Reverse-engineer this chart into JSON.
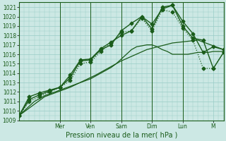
{
  "bg_color": "#cce8e4",
  "grid_color": "#99ccc6",
  "line_color": "#1a5c1a",
  "xlabel": "Pression niveau de la mer( hPa )",
  "ylim": [
    1009,
    1021.5
  ],
  "yticks": [
    1009,
    1010,
    1011,
    1012,
    1013,
    1014,
    1015,
    1016,
    1017,
    1018,
    1019,
    1020,
    1021
  ],
  "day_lines": [
    16,
    28,
    40,
    52,
    64
  ],
  "xtick_positions": [
    16,
    28,
    40,
    52,
    64,
    76
  ],
  "xtick_labels": [
    "Mer",
    "Ven",
    "Sam",
    "Dim",
    "Lun",
    "M"
  ],
  "xlim": [
    0,
    80
  ],
  "series": [
    {
      "x": [
        0,
        2,
        4,
        6,
        8,
        10,
        12,
        14,
        16,
        18,
        20,
        22,
        24,
        26,
        28,
        30,
        32,
        34,
        36,
        38,
        40,
        42,
        44,
        46,
        48,
        50,
        52,
        54,
        56,
        58,
        60,
        62,
        64,
        66,
        68,
        70,
        72,
        74,
        76,
        78,
        80
      ],
      "y": [
        1009.5,
        1010.0,
        1010.5,
        1011.0,
        1011.3,
        1011.6,
        1011.8,
        1012.0,
        1012.2,
        1012.4,
        1012.6,
        1012.8,
        1013.0,
        1013.2,
        1013.4,
        1013.7,
        1014.0,
        1014.3,
        1014.6,
        1015.0,
        1015.5,
        1016.0,
        1016.5,
        1016.8,
        1016.9,
        1017.0,
        1017.0,
        1016.8,
        1016.5,
        1016.3,
        1016.0,
        1016.0,
        1016.0,
        1016.0,
        1016.1,
        1016.2,
        1016.2,
        1016.2,
        1016.3,
        1016.3,
        1016.3
      ],
      "style": "-",
      "marker": null,
      "markersize": 0,
      "lw": 0.9,
      "alpha": 1.0
    },
    {
      "x": [
        0,
        10,
        20,
        30,
        40,
        50,
        60,
        70,
        80
      ],
      "y": [
        1009.5,
        1011.5,
        1012.5,
        1013.8,
        1015.3,
        1016.5,
        1017.2,
        1017.5,
        1016.5
      ],
      "style": "-",
      "marker": null,
      "markersize": 0,
      "lw": 0.9,
      "alpha": 1.0
    },
    {
      "x": [
        0,
        4,
        8,
        12,
        16,
        20,
        24,
        28,
        32,
        36,
        40,
        44,
        48,
        52,
        56,
        60,
        64,
        68,
        72,
        76,
        80
      ],
      "y": [
        1009.5,
        1011.2,
        1011.7,
        1012.1,
        1012.5,
        1013.5,
        1015.3,
        1015.4,
        1016.5,
        1017.0,
        1018.5,
        1019.3,
        1020.0,
        1019.2,
        1020.8,
        1021.2,
        1019.0,
        1017.7,
        1017.5,
        1014.5,
        1016.2
      ],
      "style": "-",
      "marker": "D",
      "markersize": 2.5,
      "lw": 1.0,
      "alpha": 1.0
    },
    {
      "x": [
        0,
        4,
        8,
        12,
        16,
        20,
        24,
        28,
        32,
        36,
        40,
        44,
        48,
        52,
        56,
        60,
        64,
        68,
        72,
        76,
        80
      ],
      "y": [
        1009.5,
        1011.5,
        1011.9,
        1012.2,
        1012.5,
        1013.8,
        1015.4,
        1015.5,
        1016.6,
        1017.3,
        1018.0,
        1018.5,
        1020.0,
        1018.7,
        1021.0,
        1021.2,
        1019.5,
        1018.2,
        1016.2,
        1016.8,
        1016.5
      ],
      "style": "-",
      "marker": "D",
      "markersize": 2.5,
      "lw": 1.0,
      "alpha": 1.0
    },
    {
      "x": [
        0,
        4,
        8,
        12,
        16,
        20,
        24,
        28,
        32,
        36,
        40,
        44,
        48,
        52,
        56,
        60,
        64,
        68,
        72,
        76,
        80
      ],
      "y": [
        1009.5,
        1011.0,
        1011.5,
        1012.0,
        1012.5,
        1013.2,
        1015.0,
        1015.2,
        1016.3,
        1017.2,
        1018.3,
        1018.5,
        1019.8,
        1018.5,
        1020.7,
        1020.5,
        1018.8,
        1017.5,
        1014.5,
        1014.5,
        1016.2
      ],
      "style": ":",
      "marker": "D",
      "markersize": 2.5,
      "lw": 0.9,
      "alpha": 1.0
    }
  ]
}
